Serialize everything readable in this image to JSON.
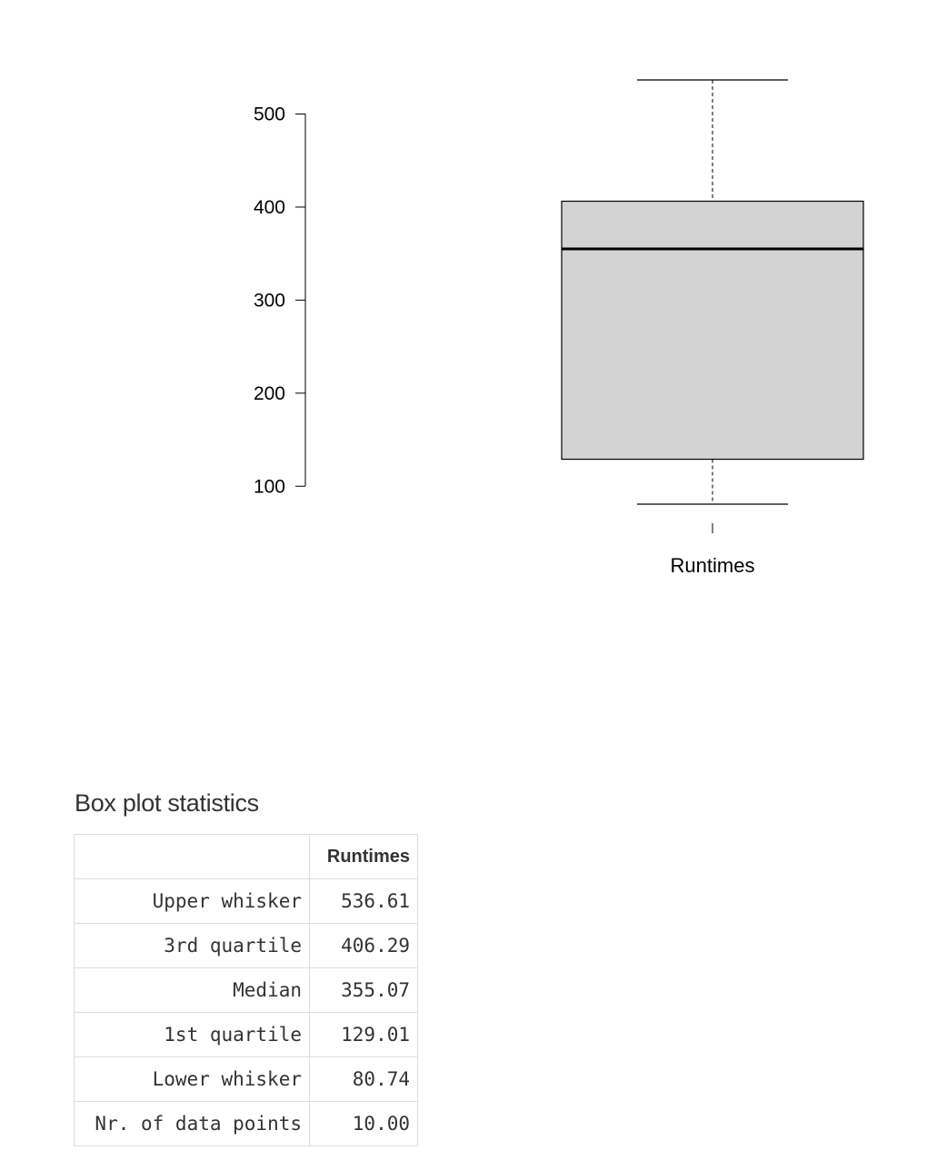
{
  "chart_data": {
    "type": "box",
    "categories": [
      "Runtimes"
    ],
    "series": [
      {
        "name": "Runtimes",
        "upper_whisker": 536.61,
        "q3": 406.29,
        "median": 355.07,
        "q1": 129.01,
        "lower_whisker": 80.74
      }
    ],
    "yticks": [
      100,
      200,
      300,
      400,
      500
    ],
    "ylim": [
      80.74,
      536.61
    ],
    "grid": false,
    "box_fill": "#d3d3d3"
  },
  "stats": {
    "title": "Box plot statistics",
    "column_header": "Runtimes",
    "rows": [
      {
        "label": "Upper whisker",
        "value": "536.61"
      },
      {
        "label": "3rd quartile",
        "value": "406.29"
      },
      {
        "label": "Median",
        "value": "355.07"
      },
      {
        "label": "1st quartile",
        "value": "129.01"
      },
      {
        "label": "Lower whisker",
        "value": "80.74"
      },
      {
        "label": "Nr. of data points",
        "value": "10.00"
      }
    ]
  }
}
